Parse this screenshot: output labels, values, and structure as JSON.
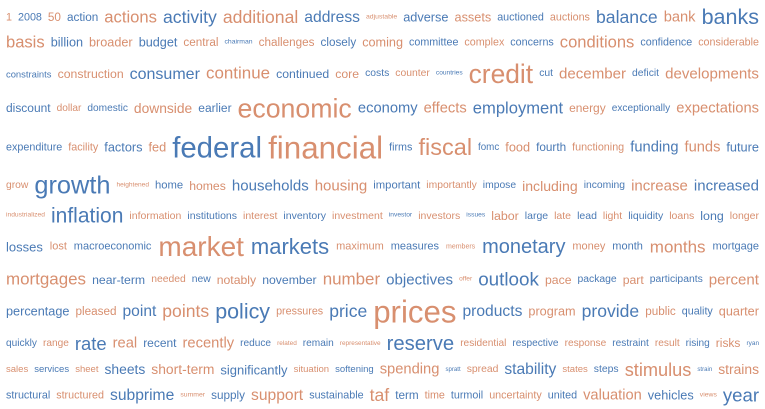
{
  "colors": {
    "blue": "#4a7ab5",
    "orange": "#d88f6f"
  },
  "rows": [
    [
      "1|o|10",
      "2008|b|10",
      "50|o|11",
      "action|b|11",
      "actions|o|15",
      "activity|b|16",
      "additional|o|16",
      "address|b|14",
      "adjustable|o|6",
      "adverse|b|12",
      "assets|o|12",
      "auctioned|b|10",
      "auctions|o|10",
      "balance|b|16",
      "bank|o|13",
      "banks|b|20"
    ],
    [
      "basis|o|15",
      "billion|b|12",
      "broader|o|12",
      "budget|b|12",
      "central|o|11",
      "chairman|b|6",
      "challenges|o|11",
      "closely|b|11",
      "coming|o|12",
      "committee|b|10",
      "complex|o|10",
      "concerns|b|10",
      "conditions|o|15",
      "confidence|b|10",
      "considerable|o|10"
    ],
    [
      "constraints|b|9",
      "construction|o|12",
      "consumer|b|15",
      "continue|o|16",
      "continued|b|12",
      "core|o|12",
      "costs|b|10",
      "counter|o|10",
      "countries|b|6",
      "credit|o|25",
      "cut|b|10",
      "december|o|14",
      "deficit|b|10",
      "developments|o|14"
    ],
    [
      "discount|b|12",
      "dollar|o|10",
      "domestic|b|10",
      "downside|o|13",
      "earlier|b|12",
      "economic|o|26",
      "economy|b|14",
      "effects|o|14",
      "employment|b|16",
      "energy|o|12",
      "exceptionally|b|10",
      "expectations|o|14"
    ],
    [
      "expenditure|b|10",
      "facility|o|10",
      "factors|b|12",
      "fed|o|12",
      "federal|b|27",
      "financial|o|29",
      "firms|b|10",
      "fiscal|o|21",
      "fomc|b|9",
      "food|o|12",
      "fourth|b|11",
      "functioning|o|10",
      "funding|b|13",
      "funds|o|13",
      "future|b|12"
    ],
    [
      "grow|o|10",
      "growth|b|24",
      "heightened|o|6",
      "home|b|11",
      "homes|o|12",
      "households|b|14",
      "housing|o|14",
      "important|b|11",
      "importantly|o|10",
      "impose|b|10",
      "including|o|13",
      "incoming|b|10",
      "increase|o|14",
      "increased|b|14"
    ],
    [
      "industrialized|o|6",
      "inflation|b|20",
      "information|o|10",
      "institutions|b|10",
      "interest|o|10",
      "inventory|b|10",
      "investment|o|10",
      "investor|b|6",
      "investors|o|10",
      "issues|b|6",
      "labor|o|12",
      "large|b|10",
      "late|o|10",
      "lead|b|10",
      "light|o|10",
      "liquidity|b|10",
      "loans|o|10",
      "long|b|12",
      "longer|o|10"
    ],
    [
      "losses|b|12",
      "lost|o|10",
      "macroeconomic|b|10",
      "market|o|25",
      "markets|b|20",
      "maximum|o|10",
      "measures|b|10",
      "members|o|6",
      "monetary|b|18",
      "money|o|10",
      "month|b|10",
      "months|o|15",
      "mortgage|b|10"
    ],
    [
      "mortgages|o|16",
      "near-term|b|12",
      "needed|o|10",
      "new|b|10",
      "notably|o|12",
      "november|b|12",
      "number|o|16",
      "objectives|b|14",
      "offer|o|6",
      "outlook|b|18",
      "pace|o|12",
      "package|b|10",
      "part|o|12",
      "participants|b|10",
      "percent|o|14"
    ],
    [
      "percentage|b|12",
      "pleased|o|11",
      "point|b|14",
      "points|o|16",
      "policy|b|20",
      "pressures|o|10",
      "price|b|16",
      "prices|o|29",
      "products|b|14",
      "program|o|12",
      "provide|b|16",
      "public|o|11",
      "quality|b|10",
      "quarter|o|12"
    ],
    [
      "quickly|b|10",
      "range|o|10",
      "rate|b|18",
      "real|o|14",
      "recent|b|12",
      "recently|o|14",
      "reduce|b|10",
      "related|o|6",
      "remain|b|10",
      "representative|o|6",
      "reserve|b|20",
      "residential|o|10",
      "respective|b|10",
      "response|o|10",
      "restraint|b|10",
      "result|o|10",
      "rising|b|10",
      "risks|o|12",
      "ryan|b|6"
    ],
    [
      "sales|o|10",
      "services|b|10",
      "sheet|o|10",
      "sheets|b|14",
      "short-term|o|14",
      "significantly|b|13",
      "situation|o|10",
      "softening|b|10",
      "spending|o|15",
      "spratt|b|6",
      "spread|o|11",
      "stability|b|16",
      "states|o|10",
      "steps|b|11",
      "stimulus|o|19",
      "strain|b|6",
      "strains|o|14"
    ],
    [
      "structural|b|10",
      "structured|o|10",
      "subprime|b|14",
      "summer|o|6",
      "supply|b|11",
      "support|o|14",
      "sustainable|b|10",
      "taf|o|16",
      "term|b|11",
      "time|o|10",
      "turmoil|b|10",
      "uncertainty|o|10",
      "united|b|10",
      "valuation|o|13",
      "vehicles|b|12",
      "views|o|6",
      "year|b|17"
    ]
  ]
}
